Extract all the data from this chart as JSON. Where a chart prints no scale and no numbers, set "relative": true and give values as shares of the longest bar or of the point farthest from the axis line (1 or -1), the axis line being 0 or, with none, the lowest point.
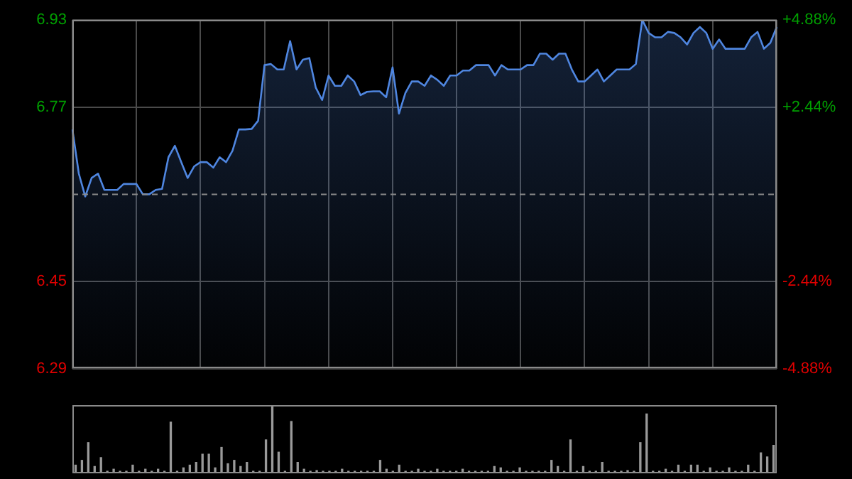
{
  "chart_data": [
    {
      "type": "area",
      "categories": [
        null,
        null,
        null,
        null,
        null,
        null,
        null,
        null,
        null,
        null,
        null,
        null,
        null,
        null,
        null,
        null,
        null,
        null,
        null,
        null,
        null,
        null,
        null,
        null,
        null,
        null,
        null,
        null,
        null,
        null,
        null,
        null,
        null,
        null,
        null,
        null,
        null,
        null,
        null,
        null,
        null,
        null,
        null,
        null,
        null,
        null,
        null,
        null,
        null,
        null,
        null,
        null,
        null,
        null,
        null,
        null,
        null,
        null,
        null,
        null,
        null,
        null,
        null,
        null,
        null,
        null,
        null,
        null,
        null,
        null,
        null,
        null,
        null,
        null,
        null,
        null,
        null,
        null,
        null,
        null,
        null,
        null,
        null,
        null,
        null,
        null,
        null,
        null,
        null,
        null,
        null,
        null,
        null,
        null,
        null,
        null,
        null,
        null,
        null,
        null,
        null,
        null,
        null,
        null,
        null,
        null,
        null,
        null,
        null,
        null,
        null
      ],
      "ylim": [
        6.29,
        6.93
      ],
      "yticks": [
        6.29,
        6.45,
        6.77,
        6.93
      ],
      "y2lim": [
        -4.88,
        4.88
      ],
      "y2ticks": [
        {
          "value": -4.88,
          "label": "-4.88%"
        },
        {
          "value": -2.44,
          "label": "-2.44%"
        },
        {
          "value": 2.44,
          "label": "+2.44%"
        },
        {
          "value": 4.88,
          "label": "+4.88%"
        }
      ],
      "tick_labels": "y",
      "grid": true,
      "legend": false,
      "marker": "none",
      "line_style": "solid",
      "ref_lines": [
        {
          "axis": "y",
          "value": 6.61,
          "line_style": "dashed"
        }
      ],
      "series": [
        {
          "color": "#4f86e0",
          "values": [
            6.729,
            6.648,
            6.606,
            6.64,
            6.648,
            6.618,
            6.618,
            6.618,
            6.629,
            6.629,
            6.629,
            6.61,
            6.61,
            6.618,
            6.62,
            6.678,
            6.699,
            6.669,
            6.64,
            6.661,
            6.669,
            6.669,
            6.659,
            6.678,
            6.669,
            6.69,
            6.729,
            6.729,
            6.73,
            6.745,
            6.847,
            6.849,
            6.839,
            6.839,
            6.891,
            6.839,
            6.857,
            6.86,
            6.806,
            6.783,
            6.828,
            6.809,
            6.809,
            6.828,
            6.817,
            6.792,
            6.798,
            6.799,
            6.799,
            6.788,
            6.843,
            6.758,
            6.796,
            6.817,
            6.817,
            6.809,
            6.828,
            6.82,
            6.809,
            6.828,
            6.828,
            6.837,
            6.837,
            6.847,
            6.847,
            6.847,
            6.828,
            6.847,
            6.839,
            6.839,
            6.839,
            6.847,
            6.847,
            6.868,
            6.868,
            6.857,
            6.868,
            6.868,
            6.839,
            6.817,
            6.817,
            6.828,
            6.839,
            6.817,
            6.828,
            6.839,
            6.839,
            6.839,
            6.849,
            6.93,
            6.906,
            6.898,
            6.898,
            6.908,
            6.906,
            6.898,
            6.885,
            6.906,
            6.917,
            6.906,
            6.877,
            6.894,
            6.877,
            6.877,
            6.877,
            6.877,
            6.898,
            6.908,
            6.877,
            6.888,
            6.917
          ]
        }
      ]
    },
    {
      "type": "bar",
      "relative": true,
      "tick_labels": false,
      "grid": false,
      "legend": false,
      "categories": [
        null,
        null,
        null,
        null,
        null,
        null,
        null,
        null,
        null,
        null,
        null,
        null,
        null,
        null,
        null,
        null,
        null,
        null,
        null,
        null,
        null,
        null,
        null,
        null,
        null,
        null,
        null,
        null,
        null,
        null,
        null,
        null,
        null,
        null,
        null,
        null,
        null,
        null,
        null,
        null,
        null,
        null,
        null,
        null,
        null,
        null,
        null,
        null,
        null,
        null,
        null,
        null,
        null,
        null,
        null,
        null,
        null,
        null,
        null,
        null,
        null,
        null,
        null,
        null,
        null,
        null,
        null,
        null,
        null,
        null,
        null,
        null,
        null,
        null,
        null,
        null,
        null,
        null,
        null,
        null,
        null,
        null,
        null,
        null,
        null,
        null,
        null,
        null,
        null,
        null,
        null,
        null,
        null,
        null,
        null,
        null,
        null,
        null,
        null,
        null,
        null,
        null,
        null,
        null,
        null,
        null,
        null,
        null,
        null,
        null,
        null
      ],
      "series": [
        {
          "color": "#9a9a9a",
          "values": [
            0.12,
            0.19,
            0.45,
            0.1,
            0.23,
            0.03,
            0.06,
            0.03,
            0.03,
            0.12,
            0.03,
            0.06,
            0.03,
            0.06,
            0.03,
            0.75,
            0.03,
            0.08,
            0.12,
            0.16,
            0.28,
            0.28,
            0.08,
            0.38,
            0.14,
            0.19,
            0.1,
            0.16,
            0.03,
            0.03,
            0.49,
            1,
            0.31,
            0.03,
            0.76,
            0.16,
            0.06,
            0.03,
            0.04,
            0.03,
            0.03,
            0.03,
            0.06,
            0.03,
            0.03,
            0.03,
            0.03,
            0.03,
            0.19,
            0.06,
            0.03,
            0.12,
            0.03,
            0.03,
            0.06,
            0.03,
            0.03,
            0.06,
            0.03,
            0.03,
            0.03,
            0.06,
            0.03,
            0.03,
            0.03,
            0.03,
            0.1,
            0.08,
            0.03,
            0.03,
            0.08,
            0.03,
            0.03,
            0.03,
            0.03,
            0.19,
            0.1,
            0.03,
            0.49,
            0.03,
            0.1,
            0.03,
            0.03,
            0.16,
            0.03,
            0.03,
            0.03,
            0.04,
            0.03,
            0.45,
            0.87,
            0.03,
            0.03,
            0.06,
            0.03,
            0.12,
            0.03,
            0.12,
            0.12,
            0.03,
            0.08,
            0.03,
            0.03,
            0.08,
            0.03,
            0.03,
            0.12,
            0.03,
            0.3,
            0.24,
            0.41
          ]
        }
      ]
    }
  ]
}
